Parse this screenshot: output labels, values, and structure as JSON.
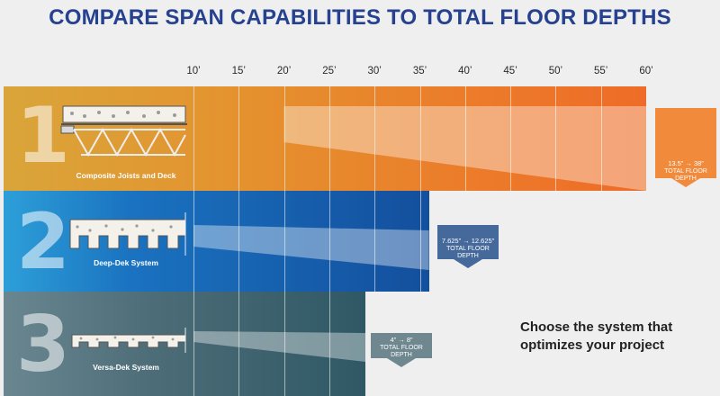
{
  "title": "COMPARE SPAN CAPABILITIES TO TOTAL FLOOR DEPTHS",
  "cta": {
    "line1": "Choose the system that",
    "line2": "optimizes your project"
  },
  "colors": {
    "title": "#25418f",
    "system1": "#e98a2b",
    "system2": "#1b64b3",
    "system3": "#3f6470"
  },
  "chart_data": {
    "type": "bar",
    "orientation": "horizontal",
    "x_unit": "feet",
    "xlim": [
      10,
      60
    ],
    "tick_labels": [
      "10’",
      "15’",
      "20’",
      "25’",
      "30’",
      "35’",
      "40’",
      "45’",
      "50’",
      "55’",
      "60’"
    ],
    "ticks": [
      10,
      15,
      20,
      25,
      30,
      35,
      40,
      45,
      50,
      55,
      60
    ],
    "series": [
      {
        "number": "1",
        "name": "Composite Joists and Deck",
        "max_span": 60,
        "depth_range": "13.5” → 38”",
        "depth_label": [
          "TOTAL FLOOR",
          "DEPTH"
        ]
      },
      {
        "number": "2",
        "name": "Deep-Dek  System",
        "max_span": 36,
        "depth_range": "7.625” → 12.625”",
        "depth_label": [
          "TOTAL FLOOR",
          "DEPTH"
        ]
      },
      {
        "number": "3",
        "name": "Versa-Dek  System",
        "max_span": 29,
        "depth_range": "4” → 8”",
        "depth_label": [
          "TOTAL FLOOR",
          "DEPTH"
        ]
      }
    ]
  }
}
